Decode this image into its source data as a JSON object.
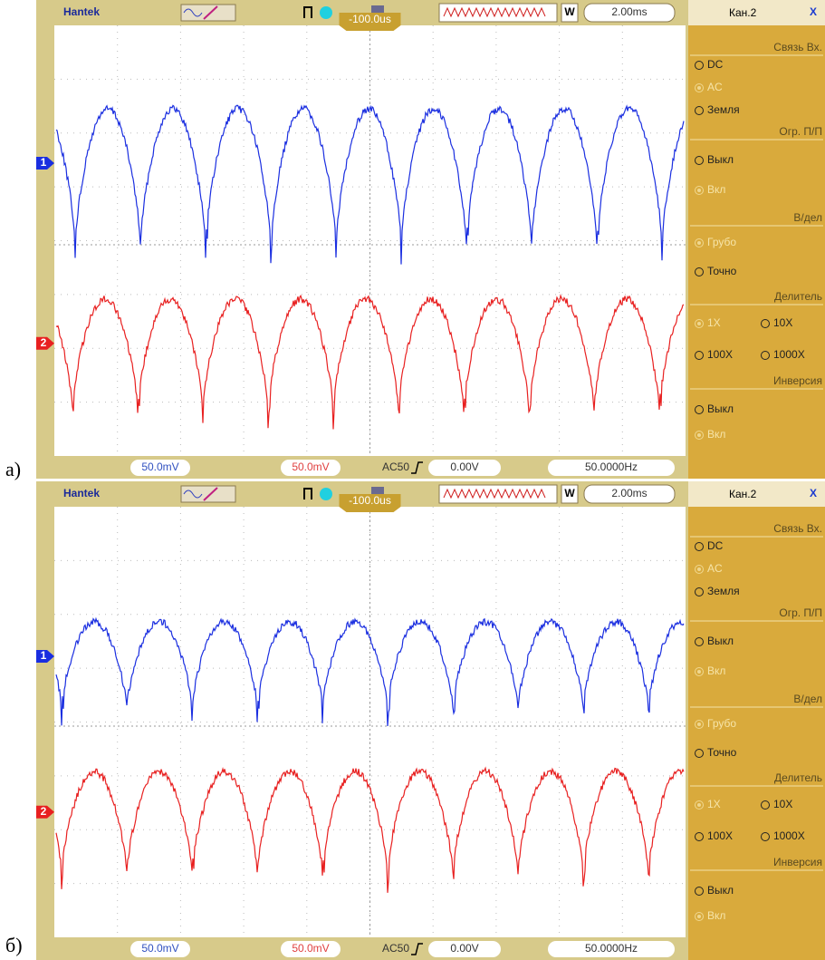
{
  "panels": [
    {
      "label": "а)",
      "toolbar": {
        "brand": "Hantek",
        "trigger_position": "-100.0us",
        "mode": "W",
        "timebase": "2.00ms"
      },
      "channel_markers": [
        "1",
        "2"
      ],
      "sidebar": {
        "title": "Кан.2",
        "close": "X",
        "sections": [
          {
            "heading": "Связь Вх.",
            "options": [
              "DC",
              "AC",
              "Земля"
            ],
            "selected": 1
          },
          {
            "heading": "Огр. П/П",
            "options": [
              "Выкл",
              "Вкл"
            ],
            "selected": 1
          },
          {
            "heading": "В/дел",
            "options": [
              "Грубо",
              "Точно"
            ],
            "selected": 0
          },
          {
            "heading": "Делитель",
            "options": [
              "1X",
              "10X",
              "100X",
              "1000X"
            ],
            "selected": 0
          },
          {
            "heading": "Инверсия",
            "options": [
              "Выкл",
              "Вкл"
            ],
            "selected": 1
          }
        ]
      },
      "status": {
        "ch1_scale": "50.0mV",
        "ch2_scale": "50.0mV",
        "trigger": "AC50",
        "trigger_level": "0.00V",
        "frequency": "50.0000Hz"
      }
    },
    {
      "label": "б)",
      "toolbar": {
        "brand": "Hantek",
        "trigger_position": "-100.0us",
        "mode": "W",
        "timebase": "2.00ms"
      },
      "channel_markers": [
        "1",
        "2"
      ],
      "sidebar": {
        "title": "Кан.2",
        "close": "X",
        "sections": [
          {
            "heading": "Связь Вх.",
            "options": [
              "DC",
              "AC",
              "Земля"
            ],
            "selected": 1
          },
          {
            "heading": "Огр. П/П",
            "options": [
              "Выкл",
              "Вкл"
            ],
            "selected": 1
          },
          {
            "heading": "В/дел",
            "options": [
              "Грубо",
              "Точно"
            ],
            "selected": 0
          },
          {
            "heading": "Делитель",
            "options": [
              "1X",
              "10X",
              "100X",
              "1000X"
            ],
            "selected": 0
          },
          {
            "heading": "Инверсия",
            "options": [
              "Выкл",
              "Вкл"
            ],
            "selected": 1
          }
        ]
      },
      "status": {
        "ch1_scale": "50.0mV",
        "ch2_scale": "50.0mV",
        "trigger": "AC50",
        "trigger_level": "0.00V",
        "frequency": "50.0000Hz"
      }
    }
  ]
}
